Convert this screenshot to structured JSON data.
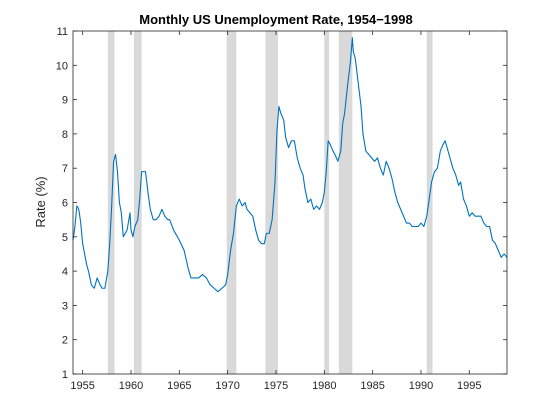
{
  "chart_data": {
    "type": "line",
    "title": "Monthly US Unemployment Rate, 1954−1998",
    "xlabel": "",
    "ylabel": "Rate (%)",
    "xlim": [
      1954.0,
      1998.9
    ],
    "ylim": [
      1,
      11
    ],
    "x_ticks": [
      1955,
      1960,
      1965,
      1970,
      1975,
      1980,
      1985,
      1990,
      1995
    ],
    "x_tick_labels": [
      "1955",
      "1960",
      "1965",
      "1970",
      "1975",
      "1980",
      "1985",
      "1990",
      "1995"
    ],
    "y_ticks": [
      1,
      2,
      3,
      4,
      5,
      6,
      7,
      8,
      9,
      10,
      11
    ],
    "y_tick_labels": [
      "1",
      "2",
      "3",
      "4",
      "5",
      "6",
      "7",
      "8",
      "9",
      "10",
      "11"
    ],
    "grid": false,
    "recession_periods": [
      [
        1957.6,
        1958.3
      ],
      [
        1960.3,
        1961.1
      ],
      [
        1969.9,
        1970.9
      ],
      [
        1973.9,
        1975.2
      ],
      [
        1980.0,
        1980.5
      ],
      [
        1981.5,
        1982.9
      ],
      [
        1990.6,
        1991.2
      ]
    ],
    "series": [
      {
        "color": "#0072BD",
        "points": [
          [
            1954.0,
            4.9
          ],
          [
            1954.2,
            5.3
          ],
          [
            1954.4,
            5.9
          ],
          [
            1954.6,
            5.8
          ],
          [
            1954.8,
            5.4
          ],
          [
            1955.0,
            4.8
          ],
          [
            1955.2,
            4.5
          ],
          [
            1955.4,
            4.2
          ],
          [
            1955.6,
            4.0
          ],
          [
            1955.9,
            3.6
          ],
          [
            1956.2,
            3.5
          ],
          [
            1956.5,
            3.8
          ],
          [
            1956.8,
            3.6
          ],
          [
            1957.0,
            3.5
          ],
          [
            1957.3,
            3.5
          ],
          [
            1957.6,
            4.0
          ],
          [
            1957.8,
            4.8
          ],
          [
            1958.0,
            5.9
          ],
          [
            1958.2,
            7.2
          ],
          [
            1958.4,
            7.4
          ],
          [
            1958.6,
            6.9
          ],
          [
            1958.8,
            6.0
          ],
          [
            1959.0,
            5.7
          ],
          [
            1959.2,
            5.0
          ],
          [
            1959.4,
            5.1
          ],
          [
            1959.6,
            5.2
          ],
          [
            1959.9,
            5.7
          ],
          [
            1960.0,
            5.2
          ],
          [
            1960.2,
            5.0
          ],
          [
            1960.4,
            5.3
          ],
          [
            1960.7,
            5.5
          ],
          [
            1960.9,
            6.1
          ],
          [
            1961.1,
            6.9
          ],
          [
            1961.3,
            6.9
          ],
          [
            1961.5,
            6.9
          ],
          [
            1961.8,
            6.2
          ],
          [
            1962.0,
            5.8
          ],
          [
            1962.3,
            5.5
          ],
          [
            1962.6,
            5.5
          ],
          [
            1962.9,
            5.6
          ],
          [
            1963.2,
            5.8
          ],
          [
            1963.5,
            5.6
          ],
          [
            1963.8,
            5.5
          ],
          [
            1964.0,
            5.5
          ],
          [
            1964.4,
            5.2
          ],
          [
            1964.8,
            5.0
          ],
          [
            1965.0,
            4.9
          ],
          [
            1965.5,
            4.6
          ],
          [
            1965.9,
            4.1
          ],
          [
            1966.2,
            3.8
          ],
          [
            1966.6,
            3.8
          ],
          [
            1967.0,
            3.8
          ],
          [
            1967.4,
            3.9
          ],
          [
            1967.8,
            3.8
          ],
          [
            1968.2,
            3.6
          ],
          [
            1968.6,
            3.5
          ],
          [
            1969.0,
            3.4
          ],
          [
            1969.4,
            3.5
          ],
          [
            1969.8,
            3.6
          ],
          [
            1970.0,
            3.9
          ],
          [
            1970.3,
            4.6
          ],
          [
            1970.6,
            5.1
          ],
          [
            1970.9,
            5.9
          ],
          [
            1971.2,
            6.1
          ],
          [
            1971.5,
            5.9
          ],
          [
            1971.8,
            6.0
          ],
          [
            1972.0,
            5.8
          ],
          [
            1972.3,
            5.7
          ],
          [
            1972.6,
            5.6
          ],
          [
            1972.9,
            5.2
          ],
          [
            1973.2,
            4.9
          ],
          [
            1973.5,
            4.8
          ],
          [
            1973.8,
            4.8
          ],
          [
            1974.0,
            5.1
          ],
          [
            1974.3,
            5.1
          ],
          [
            1974.6,
            5.5
          ],
          [
            1974.9,
            6.6
          ],
          [
            1975.1,
            8.1
          ],
          [
            1975.3,
            8.8
          ],
          [
            1975.5,
            8.6
          ],
          [
            1975.8,
            8.4
          ],
          [
            1976.0,
            7.9
          ],
          [
            1976.3,
            7.6
          ],
          [
            1976.6,
            7.8
          ],
          [
            1976.9,
            7.8
          ],
          [
            1977.2,
            7.3
          ],
          [
            1977.5,
            7.0
          ],
          [
            1977.8,
            6.8
          ],
          [
            1978.0,
            6.4
          ],
          [
            1978.3,
            6.0
          ],
          [
            1978.6,
            6.1
          ],
          [
            1978.9,
            5.8
          ],
          [
            1979.2,
            5.9
          ],
          [
            1979.5,
            5.8
          ],
          [
            1979.8,
            6.0
          ],
          [
            1980.0,
            6.3
          ],
          [
            1980.2,
            6.9
          ],
          [
            1980.4,
            7.8
          ],
          [
            1980.6,
            7.7
          ],
          [
            1980.9,
            7.5
          ],
          [
            1981.1,
            7.4
          ],
          [
            1981.4,
            7.2
          ],
          [
            1981.7,
            7.5
          ],
          [
            1981.9,
            8.3
          ],
          [
            1982.1,
            8.6
          ],
          [
            1982.4,
            9.4
          ],
          [
            1982.7,
            10.1
          ],
          [
            1982.9,
            10.8
          ],
          [
            1983.0,
            10.4
          ],
          [
            1983.2,
            10.2
          ],
          [
            1983.5,
            9.5
          ],
          [
            1983.8,
            8.8
          ],
          [
            1984.0,
            8.0
          ],
          [
            1984.3,
            7.5
          ],
          [
            1984.6,
            7.4
          ],
          [
            1984.9,
            7.3
          ],
          [
            1985.2,
            7.2
          ],
          [
            1985.5,
            7.3
          ],
          [
            1985.8,
            7.0
          ],
          [
            1986.1,
            6.8
          ],
          [
            1986.4,
            7.2
          ],
          [
            1986.7,
            7.0
          ],
          [
            1987.0,
            6.7
          ],
          [
            1987.3,
            6.3
          ],
          [
            1987.6,
            6.0
          ],
          [
            1987.9,
            5.8
          ],
          [
            1988.2,
            5.6
          ],
          [
            1988.5,
            5.4
          ],
          [
            1988.8,
            5.4
          ],
          [
            1989.1,
            5.3
          ],
          [
            1989.4,
            5.3
          ],
          [
            1989.7,
            5.3
          ],
          [
            1990.0,
            5.4
          ],
          [
            1990.3,
            5.3
          ],
          [
            1990.6,
            5.6
          ],
          [
            1990.9,
            6.2
          ],
          [
            1991.1,
            6.6
          ],
          [
            1991.4,
            6.9
          ],
          [
            1991.7,
            7.0
          ],
          [
            1992.0,
            7.5
          ],
          [
            1992.3,
            7.7
          ],
          [
            1992.5,
            7.8
          ],
          [
            1992.7,
            7.6
          ],
          [
            1993.0,
            7.3
          ],
          [
            1993.3,
            7.0
          ],
          [
            1993.6,
            6.8
          ],
          [
            1993.9,
            6.5
          ],
          [
            1994.1,
            6.6
          ],
          [
            1994.4,
            6.1
          ],
          [
            1994.7,
            5.9
          ],
          [
            1995.0,
            5.6
          ],
          [
            1995.3,
            5.7
          ],
          [
            1995.6,
            5.6
          ],
          [
            1995.9,
            5.6
          ],
          [
            1996.2,
            5.6
          ],
          [
            1996.5,
            5.4
          ],
          [
            1996.8,
            5.3
          ],
          [
            1997.1,
            5.3
          ],
          [
            1997.4,
            4.9
          ],
          [
            1997.7,
            4.8
          ],
          [
            1998.0,
            4.6
          ],
          [
            1998.3,
            4.4
          ],
          [
            1998.6,
            4.5
          ],
          [
            1998.9,
            4.4
          ]
        ]
      }
    ]
  }
}
